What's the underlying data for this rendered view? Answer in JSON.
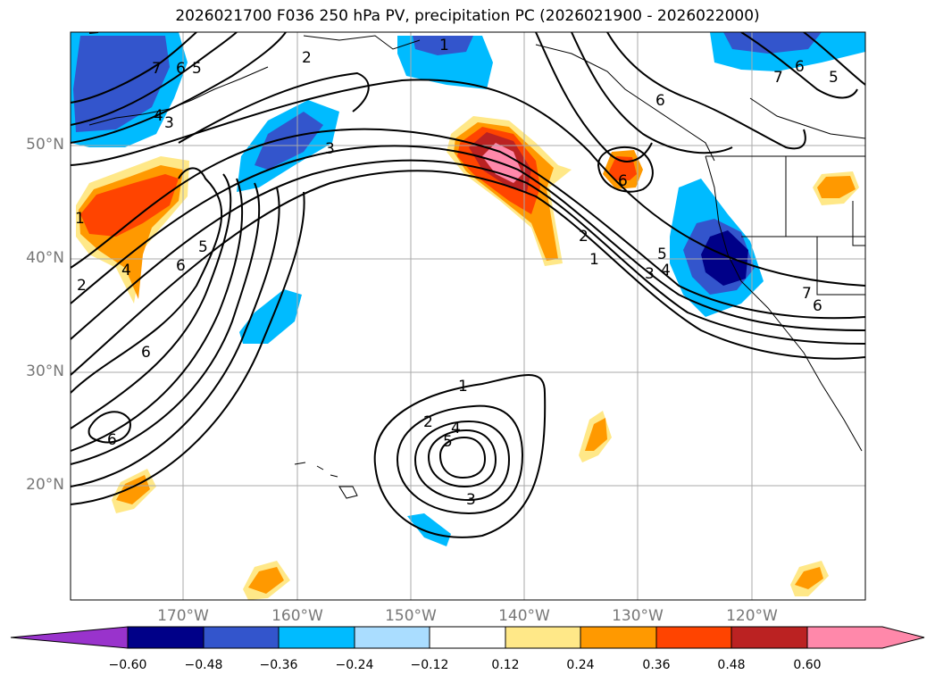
{
  "title": "2026021700 F036 250 hPa PV, precipitation PC (2026021900 - 2026022000)",
  "map": {
    "lat_labels": [
      "50°N",
      "40°N",
      "30°N",
      "20°N"
    ],
    "lon_labels": [
      "170°W",
      "160°W",
      "150°W",
      "140°W",
      "130°W",
      "120°W"
    ],
    "contour_labels": [
      "1",
      "2",
      "3",
      "4",
      "5",
      "6",
      "7"
    ],
    "grid": true
  },
  "colorbar": {
    "ticks": [
      "−0.60",
      "−0.48",
      "−0.36",
      "−0.24",
      "−0.12",
      "0.12",
      "0.24",
      "0.36",
      "0.48",
      "0.60"
    ],
    "colors": [
      "#9933cc",
      "#000088",
      "#3355cc",
      "#00bbff",
      "#aaddff",
      "#ffffff",
      "#ffe888",
      "#ff9900",
      "#ff4400",
      "#bb2222",
      "#ff88aa"
    ]
  }
}
